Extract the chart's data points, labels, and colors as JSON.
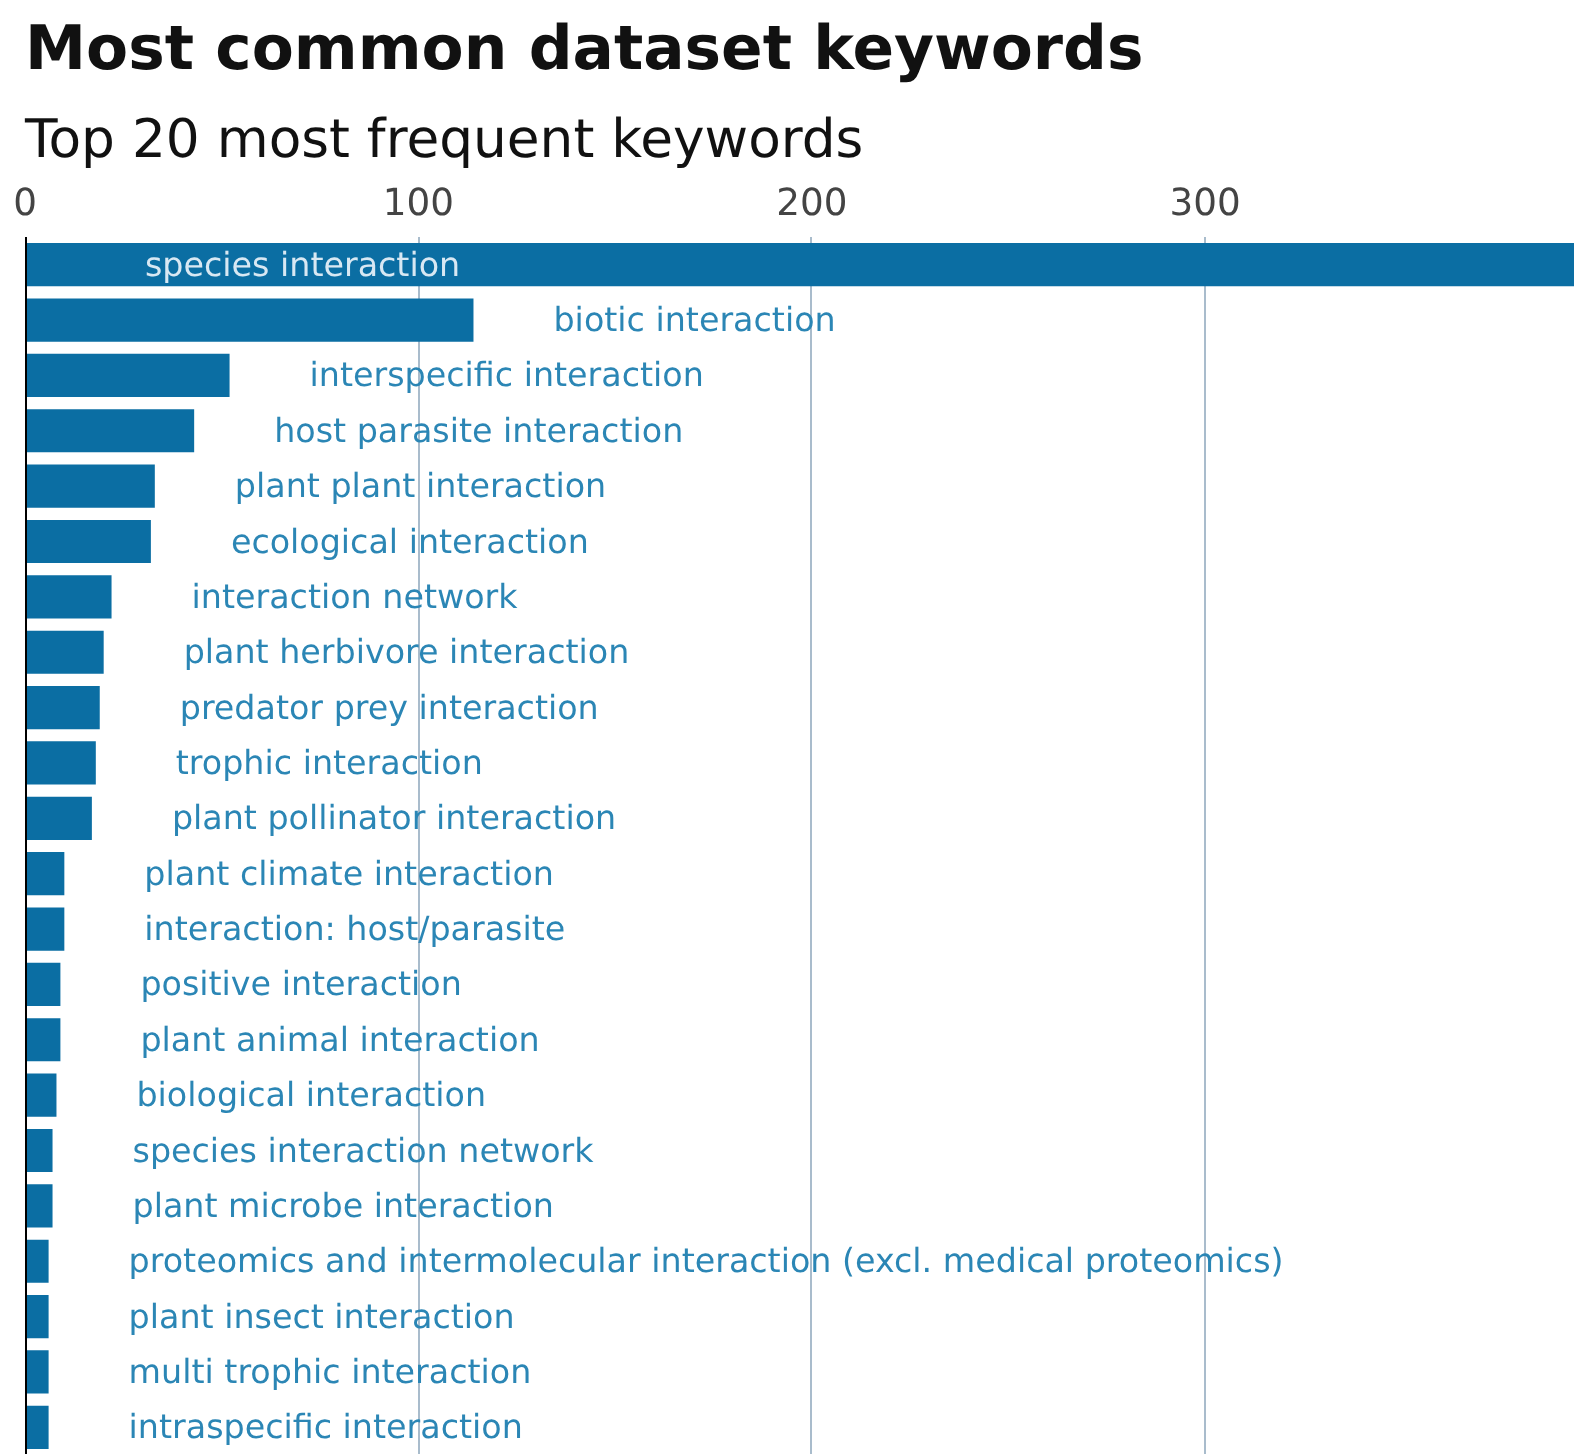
{
  "chart_data": {
    "type": "bar",
    "orientation": "horizontal",
    "title": "Most common dataset keywords",
    "subtitle": "Top 20 most frequent keywords",
    "categories": [
      "species interaction",
      "biotic interaction",
      "interspecific interaction",
      "host parasite interaction",
      "plant plant interaction",
      "ecological interaction",
      "interaction network",
      "plant herbivore interaction",
      "predator prey interaction",
      "trophic interaction",
      "plant pollinator interaction",
      "plant climate interaction",
      "interaction: host/parasite",
      "positive interaction",
      "plant animal interaction",
      "biological interaction",
      "species interaction network",
      "plant microbe interaction",
      "proteomics and intermolecular interaction (excl. medical proteomics)",
      "plant insect interaction",
      "multi trophic interaction",
      "intraspecific interaction"
    ],
    "values": [
      394,
      114,
      52,
      43,
      33,
      32,
      22,
      20,
      19,
      18,
      17,
      10,
      10,
      9,
      9,
      8,
      7,
      7,
      6,
      6,
      6,
      6
    ],
    "color": "#0b6ea3",
    "xlim": [
      0,
      394
    ],
    "xticks": [
      0,
      100,
      200,
      300
    ],
    "grid": "x"
  }
}
